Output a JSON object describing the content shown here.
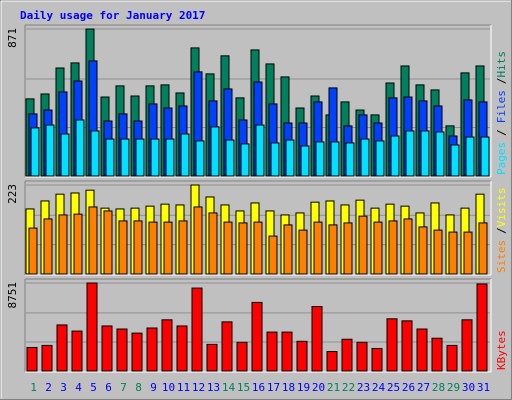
{
  "title": "Daily usage for January 2017",
  "categories": [
    "1",
    "2",
    "3",
    "4",
    "5",
    "6",
    "7",
    "8",
    "9",
    "10",
    "11",
    "12",
    "13",
    "14",
    "15",
    "16",
    "17",
    "18",
    "19",
    "20",
    "21",
    "22",
    "23",
    "24",
    "25",
    "26",
    "27",
    "28",
    "29",
    "30",
    "31"
  ],
  "category_colors": [
    "#00805C",
    "#0000FF",
    "#0000FF",
    "#0000FF",
    "#0000FF",
    "#0000FF",
    "#00805C",
    "#00805C",
    "#0000FF",
    "#0000FF",
    "#0000FF",
    "#0000FF",
    "#0000FF",
    "#00805C",
    "#00805C",
    "#0000FF",
    "#0000FF",
    "#0000FF",
    "#0000FF",
    "#0000FF",
    "#00805C",
    "#00805C",
    "#0000FF",
    "#0000FF",
    "#0000FF",
    "#0000FF",
    "#0000FF",
    "#00805C",
    "#00805C",
    "#0000FF",
    "#0000FF"
  ],
  "legend_separator": "/",
  "chart_data": [
    {
      "type": "bar",
      "ylim": [
        0,
        871
      ],
      "yticks": [
        871
      ],
      "series": [
        {
          "name": "Hits",
          "color": "#00805C",
          "values": [
            457,
            486,
            640,
            670,
            871,
            468,
            534,
            474,
            534,
            540,
            492,
            759,
            605,
            712,
            463,
            747,
            664,
            587,
            403,
            474,
            362,
            439,
            391,
            362,
            551,
            652,
            540,
            510,
            297,
            611,
            652
          ]
        },
        {
          "name": "Files",
          "color": "#0040FF",
          "values": [
            368,
            391,
            498,
            563,
            682,
            326,
            368,
            326,
            427,
            403,
            415,
            617,
            445,
            516,
            332,
            557,
            427,
            314,
            314,
            439,
            522,
            297,
            362,
            314,
            463,
            468,
            445,
            415,
            237,
            451,
            439
          ]
        },
        {
          "name": "Pages",
          "color": "#00E0FF",
          "values": [
            285,
            302,
            249,
            332,
            267,
            219,
            219,
            219,
            219,
            219,
            249,
            208,
            291,
            213,
            190,
            302,
            196,
            213,
            178,
            202,
            202,
            196,
            219,
            208,
            237,
            267,
            267,
            261,
            184,
            231,
            231
          ]
        }
      ]
    },
    {
      "type": "bar",
      "ylim": [
        0,
        223
      ],
      "yticks": [
        223
      ],
      "series": [
        {
          "name": "Visits",
          "color": "#FFFF00",
          "values": [
            163,
            183,
            200,
            203,
            210,
            165,
            163,
            165,
            170,
            175,
            173,
            223,
            193,
            173,
            158,
            178,
            158,
            148,
            153,
            180,
            183,
            173,
            185,
            165,
            175,
            170,
            153,
            178,
            148,
            165,
            200
          ]
        },
        {
          "name": "Sites",
          "color": "#FF8000",
          "values": [
            115,
            138,
            148,
            150,
            168,
            158,
            133,
            133,
            130,
            130,
            133,
            168,
            153,
            130,
            128,
            130,
            95,
            123,
            110,
            130,
            123,
            128,
            145,
            130,
            133,
            138,
            118,
            110,
            105,
            105,
            128
          ]
        }
      ]
    },
    {
      "type": "bar",
      "ylim": [
        0,
        8751
      ],
      "yticks": [
        8751
      ],
      "series": [
        {
          "name": "KBytes",
          "color": "#FF0000",
          "values": [
            2341,
            2545,
            4581,
            3970,
            8751,
            4479,
            4174,
            3767,
            4276,
            5090,
            4479,
            8246,
            2647,
            4886,
            2850,
            6821,
            3868,
            3868,
            2952,
            6413,
            1934,
            3156,
            2850,
            2240,
            5192,
            4988,
            4174,
            3258,
            2545,
            5090,
            8653
          ]
        }
      ]
    }
  ]
}
